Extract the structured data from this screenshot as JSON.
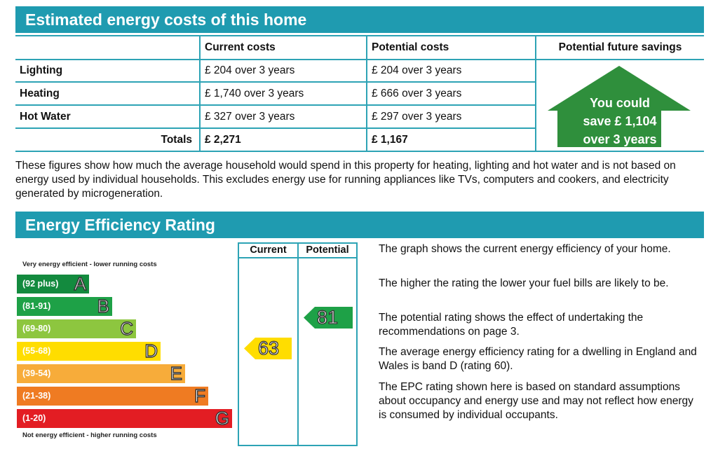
{
  "costs_section": {
    "title": "Estimated energy costs of this home",
    "headers": {
      "current": "Current costs",
      "potential": "Potential costs",
      "savings": "Potential future savings"
    },
    "rows": [
      {
        "label": "Lighting",
        "current": "£ 204 over 3 years",
        "potential": "£ 204 over 3 years"
      },
      {
        "label": "Heating",
        "current": "£ 1,740 over 3 years",
        "potential": "£ 666 over 3 years"
      },
      {
        "label": "Hot Water",
        "current": "£ 327 over 3 years",
        "potential": "£ 297 over 3 years"
      }
    ],
    "totals": {
      "label": "Totals",
      "current": "£ 2,271",
      "potential": "£ 1,167"
    },
    "savings_text": {
      "line1": "You could",
      "line2": "save £ 1,104",
      "line3": "over 3 years"
    },
    "savings_color": "#2f8f3c",
    "note": "These figures show how much the average household would spend in this property for heating, lighting and hot water and is not based on energy used by individual households. This excludes energy use for running appliances like TVs, computers and cookers, and electricity generated by microgeneration."
  },
  "rating_section": {
    "title": "Energy Efficiency Rating",
    "top_note": "Very energy efficient - lower running costs",
    "bottom_note": "Not energy efficient - higher running costs",
    "column_headers": {
      "current": "Current",
      "potential": "Potential"
    },
    "bands": [
      {
        "range": "(92 plus)",
        "letter": "A",
        "color": "#138a3e"
      },
      {
        "range": "(81-91)",
        "letter": "B",
        "color": "#1ea147"
      },
      {
        "range": "(69-80)",
        "letter": "C",
        "color": "#8dc63f"
      },
      {
        "range": "(55-68)",
        "letter": "D",
        "color": "#ffdd00"
      },
      {
        "range": "(39-54)",
        "letter": "E",
        "color": "#f7ac3a"
      },
      {
        "range": "(21-38)",
        "letter": "F",
        "color": "#ef7b22"
      },
      {
        "range": "(1-20)",
        "letter": "G",
        "color": "#e31d23"
      }
    ],
    "current_rating": "63",
    "current_color": "#ffdd00",
    "potential_rating": "81",
    "potential_color": "#1ea147",
    "explanations": [
      "The graph shows the current energy efficiency of your home.",
      "The higher the rating the lower your fuel bills are likely to be.",
      "The potential rating shows the effect of undertaking the recommendations on page 3.",
      "The average energy efficiency rating for a dwelling in England and Wales is band D (rating 60).",
      "The EPC rating shown here is based on standard assumptions about occupancy and energy use and may not reflect how energy is consumed by individual occupants."
    ]
  }
}
